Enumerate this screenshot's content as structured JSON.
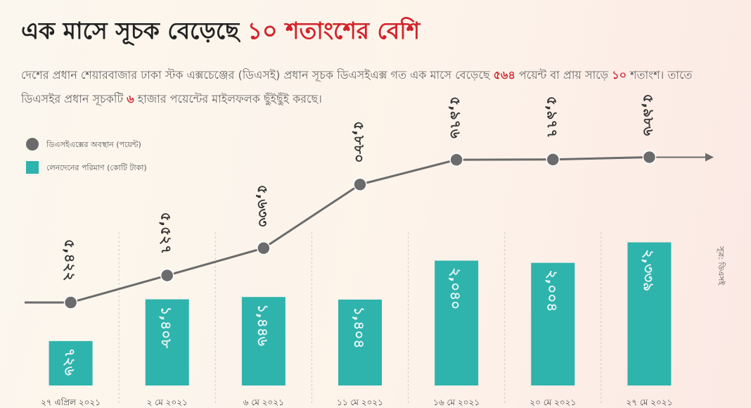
{
  "chart_data": {
    "type": "bar-line",
    "title": "এক মাসে সূচক বেড়েছে",
    "title_highlight": "১০ শতাংশের বেশি",
    "subtitle": [
      {
        "text": "দেশের প্রধান শেয়ারবাজার ঢাকা স্টক এক্সচেঞ্জের (ডিএসই) প্রধান সূচক ডিএসইএক্স গত এক মাসে বেড়েছে ",
        "highlight": false
      },
      {
        "text": "৫৬৪",
        "highlight": true
      },
      {
        "text": " পয়েন্ট বা প্রায় সাড়ে ",
        "highlight": false
      },
      {
        "text": "১০",
        "highlight": true
      },
      {
        "text": " শতাংশ। তাতে ডিএসইর প্রধান সূচকটি ",
        "highlight": false
      },
      {
        "text": "৬",
        "highlight": true
      },
      {
        "text": " হাজার পয়েন্টের মাইলফলক ছুঁইছুঁই করছে।",
        "highlight": false
      }
    ],
    "categories": [
      "২৭ এপ্রিল ২০২১",
      "২ মে ২০২১",
      "৬ মে ২০২১",
      "১১ মে ২০২১",
      "১৬ মে ২০২১",
      "২০ মে ২০২১",
      "২৭ মে ২০২১"
    ],
    "series": [
      {
        "name": "ডিএসইএক্সের অবস্থান (পয়েন্ট)",
        "type": "line",
        "color": "#6b6b6b",
        "values": [
          5422,
          5527,
          5633,
          5880,
          5976,
          5977,
          5986
        ],
        "value_labels": [
          "৫,৪২২",
          "৫,৫২৭",
          "৫,৬৩৩",
          "৫,৮৮০",
          "৫,৯৭৬",
          "৫,৯৭৭",
          "৫,৯৮৬"
        ]
      },
      {
        "name": "লেনদেনের পরিমাণ (কোটি টাকা)",
        "type": "bar",
        "color": "#2fb3ad",
        "axis": "y2",
        "values": [
          726,
          1408,
          1446,
          1404,
          2040,
          2004,
          2339
        ],
        "value_labels": [
          "৭২৬",
          "১,৪০৮",
          "১,৪৪৬",
          "১,৪০৪",
          "২,০৪০",
          "২,০০৪",
          "২,৩৩৯"
        ]
      }
    ],
    "ylim": [
      5100,
      6050
    ],
    "y2lim": [
      0,
      4000
    ],
    "source": "সূত্র: ডিএসই"
  }
}
